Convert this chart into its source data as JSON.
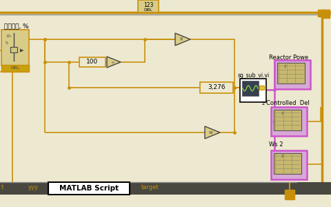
{
  "bg_color": "#ede8d0",
  "orange": "#c8900a",
  "magenta": "#cc55cc",
  "black": "#000000",
  "white": "#ffffff",
  "dark": "#444444",
  "gray": "#888888",
  "panel_face": "#d8cc88",
  "dbl_face": "#c8a010",
  "numeric_face": "#ede8d0",
  "label_slider": "출력조절, %",
  "label_100": "100",
  "label_3276": "3,276",
  "label_sg": "sg_sub_vi.vi",
  "label_reactor": "Reactor Powe",
  "label_controlled": "Controlled  Del",
  "label_ws2": "Ws 2",
  "label_matlab": "MATLAB Script",
  "label_target": "target",
  "label_yyy": "yyy"
}
